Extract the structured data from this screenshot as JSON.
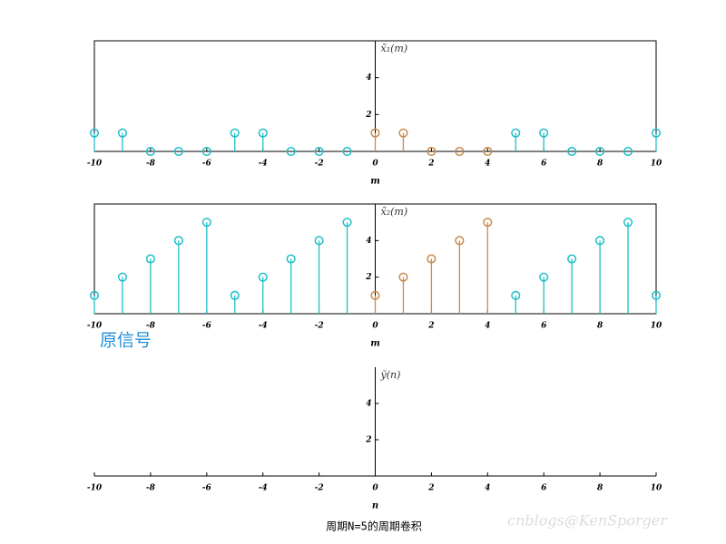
{
  "chart_data": [
    {
      "type": "stem",
      "ylabel": "x̃₁(m)",
      "xlabel": "m",
      "x": [
        -10,
        -9,
        -8,
        -7,
        -6,
        -5,
        -4,
        -3,
        -2,
        -1,
        0,
        1,
        2,
        3,
        4,
        5,
        6,
        7,
        8,
        9,
        10
      ],
      "series": [
        {
          "color": "#1fbfc9",
          "values": [
            1,
            1,
            0,
            0,
            0,
            1,
            1,
            0,
            0,
            0,
            null,
            null,
            null,
            null,
            null,
            1,
            1,
            0,
            0,
            0,
            1
          ]
        },
        {
          "color": "#c98a4a",
          "values": [
            null,
            null,
            null,
            null,
            null,
            null,
            null,
            null,
            null,
            null,
            1,
            1,
            0,
            0,
            0,
            null,
            null,
            null,
            null,
            null,
            null
          ]
        }
      ],
      "xlim": [
        -10,
        10
      ],
      "xticks": [
        -10,
        -8,
        -6,
        -4,
        -2,
        0,
        2,
        4,
        6,
        8,
        10
      ],
      "ylim": [
        0,
        6
      ],
      "yticks": [
        2,
        4
      ],
      "box": true
    },
    {
      "type": "stem",
      "ylabel": "x̃₂(m)",
      "xlabel": "m",
      "x": [
        -10,
        -9,
        -8,
        -7,
        -6,
        -5,
        -4,
        -3,
        -2,
        -1,
        0,
        1,
        2,
        3,
        4,
        5,
        6,
        7,
        8,
        9,
        10
      ],
      "series": [
        {
          "color": "#1fbfc9",
          "values": [
            1,
            2,
            3,
            4,
            5,
            1,
            2,
            3,
            4,
            5,
            null,
            null,
            null,
            null,
            null,
            1,
            2,
            3,
            4,
            5,
            1
          ]
        },
        {
          "color": "#c98a4a",
          "values": [
            null,
            null,
            null,
            null,
            null,
            null,
            null,
            null,
            null,
            null,
            1,
            2,
            3,
            4,
            5,
            null,
            null,
            null,
            null,
            null,
            null
          ]
        }
      ],
      "xlim": [
        -10,
        10
      ],
      "xticks": [
        -10,
        -8,
        -6,
        -4,
        -2,
        0,
        2,
        4,
        6,
        8,
        10
      ],
      "ylim": [
        0,
        6
      ],
      "yticks": [
        2,
        4
      ],
      "box": true
    },
    {
      "type": "stem",
      "ylabel": "ỹ(n)",
      "xlabel": "n",
      "x": [],
      "series": [],
      "xlim": [
        -10,
        10
      ],
      "xticks": [
        -10,
        -8,
        -6,
        -4,
        -2,
        0,
        2,
        4,
        6,
        8,
        10
      ],
      "ylim": [
        0,
        6
      ],
      "yticks": [
        2,
        4
      ],
      "box": false
    }
  ],
  "annotation": "原信号",
  "caption": "周期N=5的周期卷积",
  "watermark": "cnblogs@KenSporger"
}
